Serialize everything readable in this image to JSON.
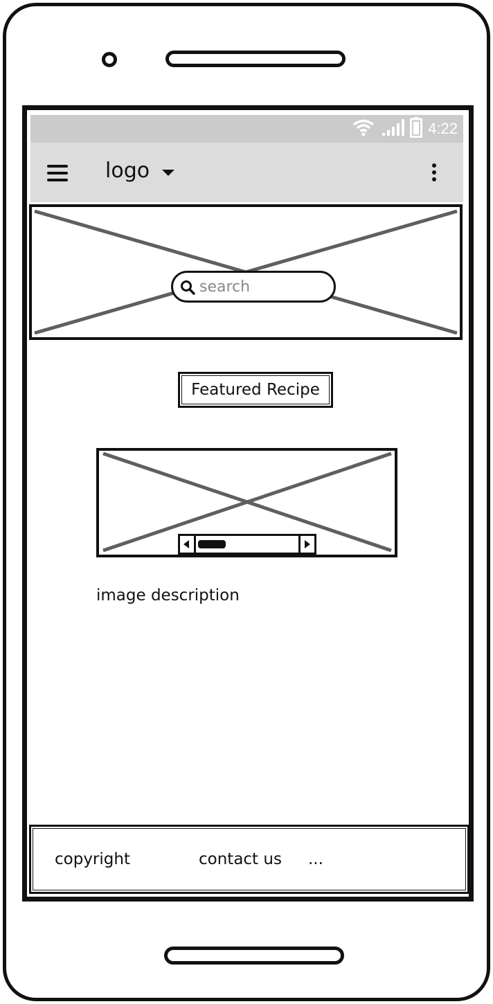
{
  "status_bar": {
    "time": "4:22",
    "icons": [
      "wifi-icon",
      "signal-icon",
      "battery-icon"
    ]
  },
  "app_bar": {
    "logo_label": "logo",
    "icons": [
      "hamburger-menu-icon",
      "chevron-down-icon",
      "overflow-menu-icon"
    ]
  },
  "hero": {
    "search_placeholder": "search"
  },
  "main": {
    "featured_button_label": "Featured Recipe",
    "image_description": "image description"
  },
  "footer": {
    "items": [
      "copyright",
      "contact us",
      "..."
    ]
  },
  "colors": {
    "status_bar_bg": "#cbcbcb",
    "app_bar_bg": "#dcdcdc",
    "placeholder_lines": "#5f5f5f",
    "outline": "#111111"
  }
}
